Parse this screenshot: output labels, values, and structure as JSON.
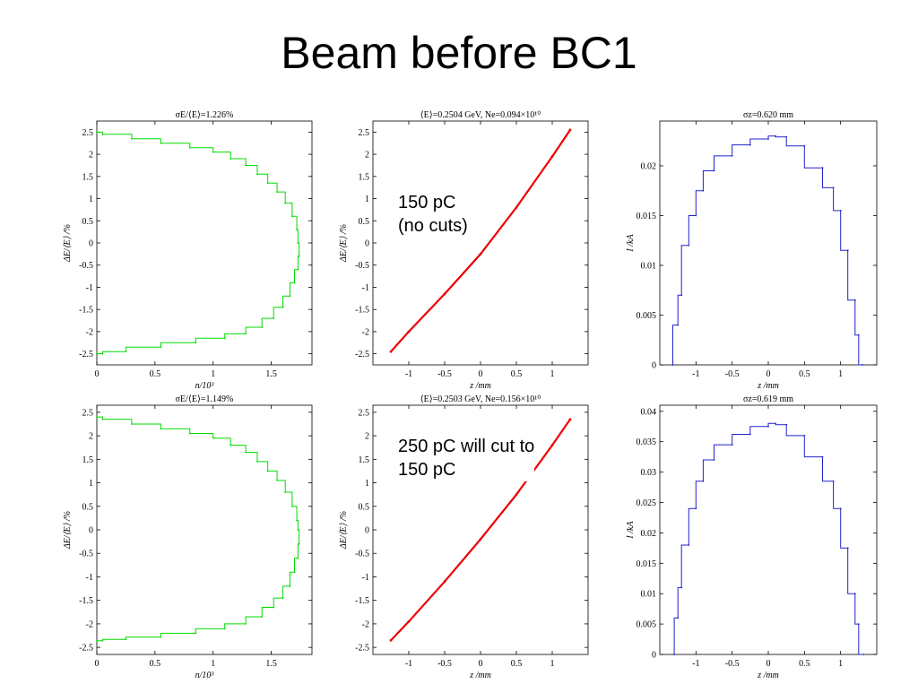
{
  "slide": {
    "title": "Beam before BC1"
  },
  "notes": {
    "top": [
      "150 pC",
      "(no cuts)"
    ],
    "bottom": [
      "250 pC will cut to",
      "150 pC"
    ]
  },
  "colors": {
    "energy": "#00dd00",
    "phase": "#ee0000",
    "current": "#2222cc"
  },
  "chart_data": [
    {
      "id": "energy-top",
      "type": "line",
      "title": "σE/⟨E⟩=1.226%",
      "xlabel": "n/10³",
      "ylabel": "ΔE/⟨E⟩ /%",
      "xlim": [
        0,
        1.85
      ],
      "ylim": [
        -2.75,
        2.75
      ],
      "xticks": [
        0,
        0.5,
        1,
        1.5
      ],
      "yticks": [
        2.5,
        2,
        1.5,
        1,
        0.5,
        0,
        -0.5,
        -1,
        -1.5,
        -2,
        -2.5
      ],
      "x": [
        0,
        0.05,
        0.3,
        0.55,
        0.8,
        1.0,
        1.15,
        1.28,
        1.38,
        1.47,
        1.55,
        1.62,
        1.68,
        1.72,
        1.73,
        1.74,
        1.73,
        1.7,
        1.66,
        1.6,
        1.52,
        1.42,
        1.28,
        1.1,
        0.85,
        0.55,
        0.25,
        0.05,
        0
      ],
      "y": [
        2.5,
        2.45,
        2.35,
        2.25,
        2.15,
        2.05,
        1.9,
        1.75,
        1.55,
        1.35,
        1.15,
        0.9,
        0.6,
        0.3,
        0,
        -0.3,
        -0.6,
        -0.9,
        -1.2,
        -1.45,
        -1.7,
        -1.9,
        -2.05,
        -2.15,
        -2.25,
        -2.35,
        -2.45,
        -2.5,
        -2.5
      ]
    },
    {
      "id": "phase-top",
      "type": "scatter",
      "title": "⟨E⟩=0.2504 GeV, Ne=0.094×10¹⁰",
      "xlabel": "z /mm",
      "ylabel": "ΔE/⟨E⟩ /%",
      "xlim": [
        -1.5,
        1.5
      ],
      "ylim": [
        -2.75,
        2.75
      ],
      "xticks": [
        -1,
        -0.5,
        0,
        0.5,
        1
      ],
      "yticks": [
        2.5,
        2,
        1.5,
        1,
        0.5,
        0,
        -0.5,
        -1,
        -1.5,
        -2,
        -2.5
      ],
      "x": [
        -1.25,
        -1.0,
        -0.5,
        0,
        0.5,
        1.0,
        1.25
      ],
      "y": [
        -2.45,
        -2.0,
        -1.15,
        -0.25,
        0.8,
        1.95,
        2.55
      ]
    },
    {
      "id": "current-top",
      "type": "line",
      "title": "σz=0.620 mm",
      "xlabel": "z /mm",
      "ylabel": "I /kA",
      "xlim": [
        -1.5,
        1.5
      ],
      "ylim": [
        0,
        0.0245
      ],
      "xticks": [
        -1,
        -0.5,
        0,
        0.5,
        1
      ],
      "yticks": [
        0,
        0.005,
        0.01,
        0.015,
        0.02
      ],
      "x": [
        -1.32,
        -1.25,
        -1.2,
        -1.1,
        -1.0,
        -0.9,
        -0.75,
        -0.5,
        -0.25,
        0,
        0.1,
        0.25,
        0.5,
        0.75,
        0.9,
        1.0,
        1.1,
        1.2,
        1.25,
        1.3
      ],
      "y": [
        0,
        0.004,
        0.007,
        0.012,
        0.015,
        0.0175,
        0.0195,
        0.021,
        0.0221,
        0.0227,
        0.023,
        0.0229,
        0.022,
        0.0198,
        0.0178,
        0.0155,
        0.0115,
        0.0065,
        0.003,
        0
      ]
    },
    {
      "id": "energy-bottom",
      "type": "line",
      "title": "σE/⟨E⟩=1.149%",
      "xlabel": "n/10³",
      "ylabel": "ΔE/⟨E⟩ /%",
      "xlim": [
        0,
        1.85
      ],
      "ylim": [
        -2.65,
        2.65
      ],
      "xticks": [
        0,
        0.5,
        1,
        1.5
      ],
      "yticks": [
        2.5,
        2,
        1.5,
        1,
        0.5,
        0,
        -0.5,
        -1,
        -1.5,
        -2,
        -2.5
      ],
      "x": [
        0,
        0.05,
        0.3,
        0.55,
        0.8,
        1.0,
        1.15,
        1.28,
        1.38,
        1.47,
        1.55,
        1.62,
        1.68,
        1.72,
        1.73,
        1.74,
        1.73,
        1.7,
        1.66,
        1.6,
        1.52,
        1.42,
        1.28,
        1.1,
        0.85,
        0.55,
        0.25,
        0.05,
        0
      ],
      "y": [
        2.4,
        2.35,
        2.25,
        2.15,
        2.05,
        1.95,
        1.8,
        1.65,
        1.45,
        1.25,
        1.05,
        0.8,
        0.5,
        0.2,
        0,
        -0.3,
        -0.6,
        -0.9,
        -1.2,
        -1.45,
        -1.65,
        -1.85,
        -2.0,
        -2.1,
        -2.2,
        -2.28,
        -2.33,
        -2.36,
        -2.36
      ]
    },
    {
      "id": "phase-bottom",
      "type": "scatter",
      "title": "⟨E⟩=0.2503 GeV, Ne=0.156×10¹⁰",
      "xlabel": "z /mm",
      "ylabel": "ΔE/⟨E⟩ /%",
      "xlim": [
        -1.5,
        1.5
      ],
      "ylim": [
        -2.65,
        2.65
      ],
      "xticks": [
        -1,
        -0.5,
        0,
        0.5,
        1
      ],
      "yticks": [
        2.5,
        2,
        1.5,
        1,
        0.5,
        0,
        -0.5,
        -1,
        -1.5,
        -2,
        -2.5
      ],
      "x": [
        -1.25,
        -1.0,
        -0.5,
        0,
        0.5,
        1.0,
        1.25
      ],
      "y": [
        -2.35,
        -1.95,
        -1.1,
        -0.2,
        0.75,
        1.8,
        2.35
      ]
    },
    {
      "id": "current-bottom",
      "type": "line",
      "title": "σz=0.619 mm",
      "xlabel": "z /mm",
      "ylabel": "I /kA",
      "xlim": [
        -1.5,
        1.5
      ],
      "ylim": [
        0,
        0.041
      ],
      "xticks": [
        -1,
        -0.5,
        0,
        0.5,
        1
      ],
      "yticks": [
        0,
        0.005,
        0.01,
        0.015,
        0.02,
        0.025,
        0.03,
        0.035,
        0.04
      ],
      "x": [
        -1.3,
        -1.25,
        -1.2,
        -1.1,
        -1.0,
        -0.9,
        -0.75,
        -0.5,
        -0.25,
        0,
        0.1,
        0.25,
        0.5,
        0.75,
        0.9,
        1.0,
        1.1,
        1.2,
        1.25,
        1.32
      ],
      "y": [
        0,
        0.006,
        0.011,
        0.018,
        0.024,
        0.0285,
        0.032,
        0.0345,
        0.0362,
        0.0375,
        0.038,
        0.0378,
        0.036,
        0.0325,
        0.0285,
        0.024,
        0.0175,
        0.01,
        0.005,
        0
      ]
    }
  ]
}
